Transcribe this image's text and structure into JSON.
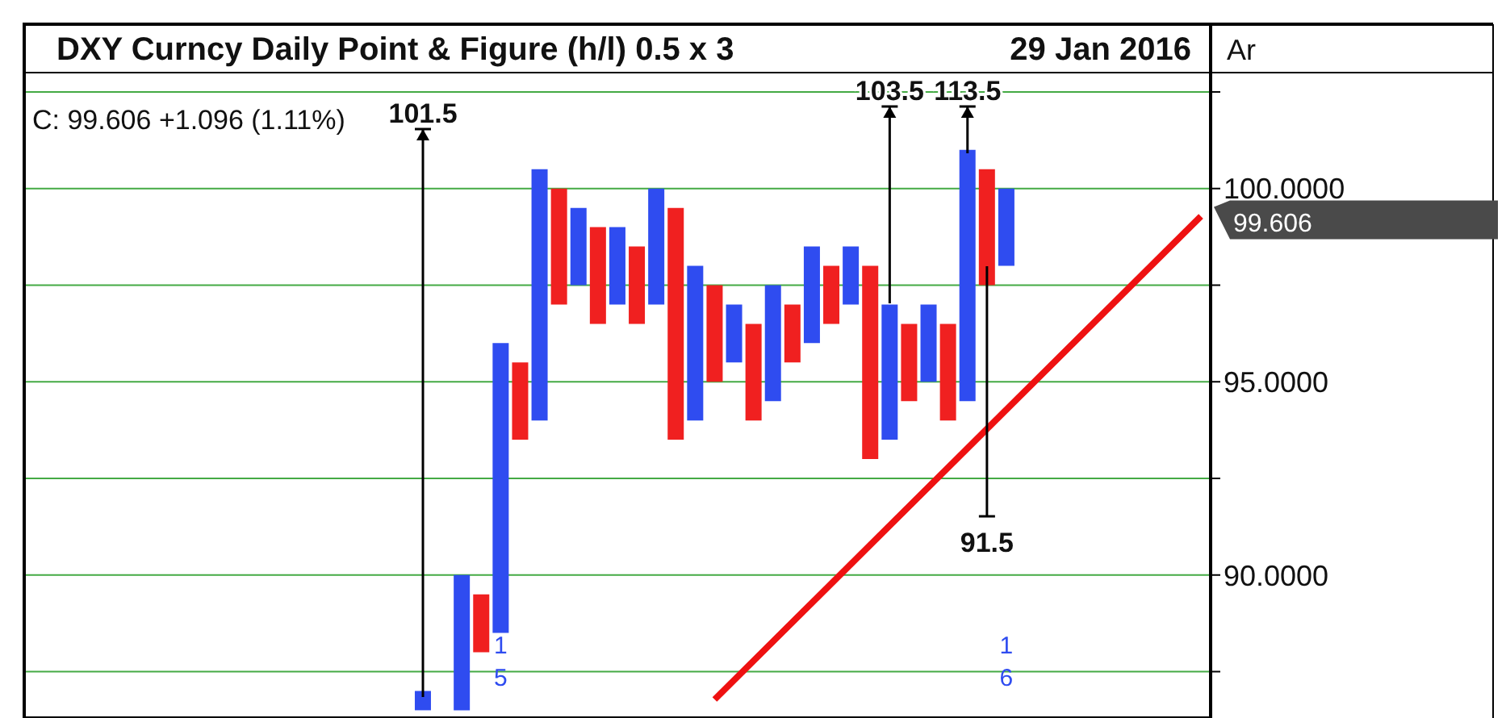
{
  "chart_data": {
    "type": "bar",
    "title": "DXY Curncy Daily Point & Figure (h/l) 0.5 x 3",
    "subtitle": "C: 99.606  +1.096 (1.11%)",
    "categories": [
      null,
      null,
      null,
      null,
      null,
      null,
      null,
      null,
      null,
      null,
      null,
      null,
      null,
      null,
      null,
      null,
      null,
      null,
      null,
      null,
      null,
      null,
      null,
      null,
      null,
      null,
      null,
      null,
      null,
      null,
      null,
      null,
      null,
      null,
      null,
      null,
      null,
      null,
      null,
      null,
      null,
      null,
      null,
      null,
      null,
      null,
      null,
      null,
      null,
      null,
      null,
      null,
      null,
      null,
      null,
      null,
      null,
      null,
      null,
      null,
      null
    ],
    "series": [
      {
        "values": [
          null,
          null,
          null,
          null,
          null,
          null,
          null,
          null,
          null,
          null,
          null,
          null,
          null,
          null,
          null,
          null,
          null,
          null,
          null,
          null,
          0.5,
          null,
          3.5,
          1.5,
          7.5,
          2.0,
          6.5,
          3.0,
          2.0,
          2.5,
          2.0,
          2.0,
          3.0,
          6.0,
          4.0,
          2.5,
          1.5,
          2.5,
          3.0,
          1.5,
          2.5,
          1.5,
          1.5,
          5.0,
          3.5,
          2.0,
          2.0,
          2.5,
          6.5,
          3.0,
          2.0,
          null,
          null,
          null,
          null,
          null,
          null,
          null,
          null,
          null,
          null
        ],
        "base": [
          null,
          null,
          null,
          null,
          null,
          null,
          null,
          null,
          null,
          null,
          null,
          null,
          null,
          null,
          null,
          null,
          null,
          null,
          null,
          null,
          86.5,
          null,
          86.5,
          88.0,
          88.5,
          93.5,
          94.0,
          97.0,
          97.5,
          96.5,
          97.0,
          96.5,
          97.0,
          93.5,
          94.0,
          95.0,
          95.5,
          94.0,
          94.5,
          95.5,
          96.0,
          96.5,
          97.0,
          93.0,
          93.5,
          94.5,
          95.0,
          94.0,
          94.5,
          97.5,
          98.0,
          null,
          null,
          null,
          null,
          null,
          null,
          null,
          null,
          null,
          null
        ],
        "colors": [
          null,
          null,
          null,
          null,
          null,
          null,
          null,
          null,
          null,
          null,
          null,
          null,
          null,
          null,
          null,
          null,
          null,
          null,
          null,
          null,
          "#2f4cf0",
          null,
          "#2f4cf0",
          "#f02020",
          "#2f4cf0",
          "#f02020",
          "#2f4cf0",
          "#f02020",
          "#2f4cf0",
          "#f02020",
          "#2f4cf0",
          "#f02020",
          "#2f4cf0",
          "#f02020",
          "#2f4cf0",
          "#f02020",
          "#2f4cf0",
          "#f02020",
          "#2f4cf0",
          "#f02020",
          "#2f4cf0",
          "#f02020",
          "#2f4cf0",
          "#f02020",
          "#2f4cf0",
          "#f02020",
          "#2f4cf0",
          "#f02020",
          "#2f4cf0",
          "#f02020",
          "#2f4cf0",
          null,
          null,
          null,
          null,
          null,
          null,
          null,
          null,
          null,
          null
        ]
      },
      {
        "type": "line",
        "color": "#ee1111",
        "values": [
          null,
          null,
          null,
          null,
          null,
          null,
          null,
          null,
          null,
          null,
          null,
          null,
          null,
          null,
          null,
          null,
          null,
          null,
          null,
          null,
          null,
          null,
          null,
          null,
          null,
          null,
          null,
          null,
          null,
          null,
          null,
          null,
          null,
          null,
          null,
          86.78,
          null,
          null,
          null,
          null,
          null,
          null,
          null,
          null,
          null,
          null,
          null,
          null,
          null,
          null,
          null,
          null,
          null,
          null,
          null,
          null,
          null,
          null,
          null,
          null,
          99.28
        ]
      }
    ],
    "ylim": [
      86.3,
      103
    ],
    "yticks": [
      {
        "value": 87.5,
        "label": null
      },
      {
        "value": 90,
        "label": "90.0000"
      },
      {
        "value": 92.5,
        "label": null
      },
      {
        "value": 95,
        "label": "95.0000"
      },
      {
        "value": 97.5,
        "label": null
      },
      {
        "value": 100,
        "label": "100.0000"
      },
      {
        "value": 102.5,
        "label": null
      }
    ],
    "grid": "y",
    "tick_labels": "y",
    "annotations": [
      "29 Jan 2016",
      "Ar",
      "101.5",
      "103.5",
      "113.5",
      "91.5",
      "15",
      "16",
      "99.606"
    ]
  }
}
